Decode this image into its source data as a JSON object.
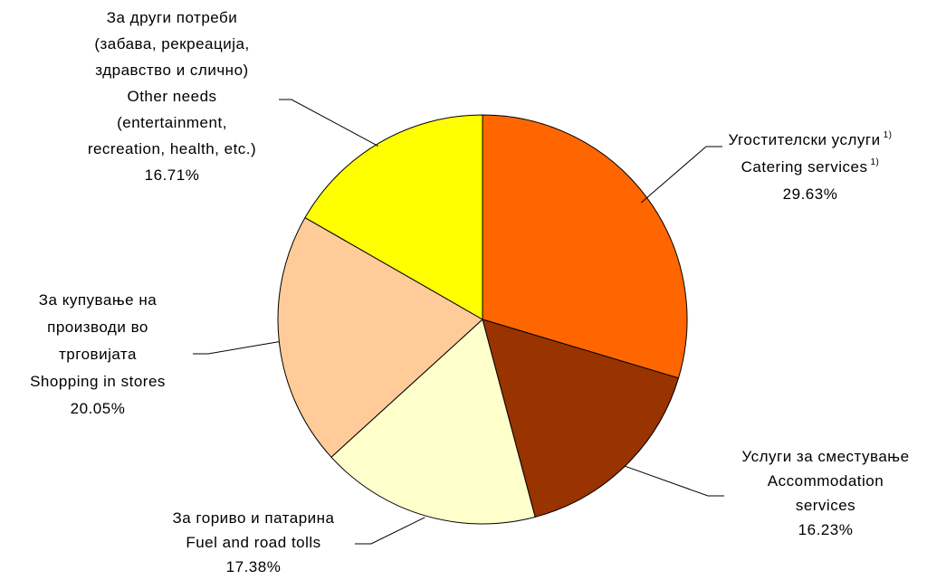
{
  "chart_data": {
    "type": "pie",
    "slices": [
      {
        "key": "catering",
        "value": 29.63,
        "pct_label": "29.63%",
        "color": "#FF6600",
        "lines": [
          {
            "text": "Угостителски услуги",
            "sup": "1)"
          },
          {
            "text": "Catering services",
            "sup": "1)"
          },
          {
            "text": "29.63%"
          }
        ]
      },
      {
        "key": "accommodation",
        "value": 16.23,
        "pct_label": "16.23%",
        "color": "#993300",
        "lines": [
          {
            "text": "Услуги за сместување"
          },
          {
            "text": "Accommodation"
          },
          {
            "text": "services"
          },
          {
            "text": "16.23%"
          }
        ]
      },
      {
        "key": "fuel",
        "value": 17.38,
        "pct_label": "17.38%",
        "color": "#FFFFCC",
        "lines": [
          {
            "text": "За гориво и патарина"
          },
          {
            "text": "Fuel and road tolls"
          },
          {
            "text": "17.38%"
          }
        ]
      },
      {
        "key": "shopping",
        "value": 20.05,
        "pct_label": "20.05%",
        "color": "#FFCC99",
        "lines": [
          {
            "text": "За купување на"
          },
          {
            "text": "производи во"
          },
          {
            "text": "трговијата"
          },
          {
            "text": "Shopping in stores"
          },
          {
            "text": "20.05%"
          }
        ]
      },
      {
        "key": "other",
        "value": 16.71,
        "pct_label": "16.71%",
        "color": "#FFFF00",
        "lines": [
          {
            "text": "За други потреби"
          },
          {
            "text": "(забава, рекреација,"
          },
          {
            "text": "здравство и слично)"
          },
          {
            "text": "Other needs"
          },
          {
            "text": "(entertainment,"
          },
          {
            "text": "recreation, health, etc.)"
          },
          {
            "text": "16.71%"
          }
        ]
      }
    ],
    "start": "12 o'clock",
    "direction": "clockwise",
    "legend": "none",
    "labels": "outside with leader lines"
  }
}
